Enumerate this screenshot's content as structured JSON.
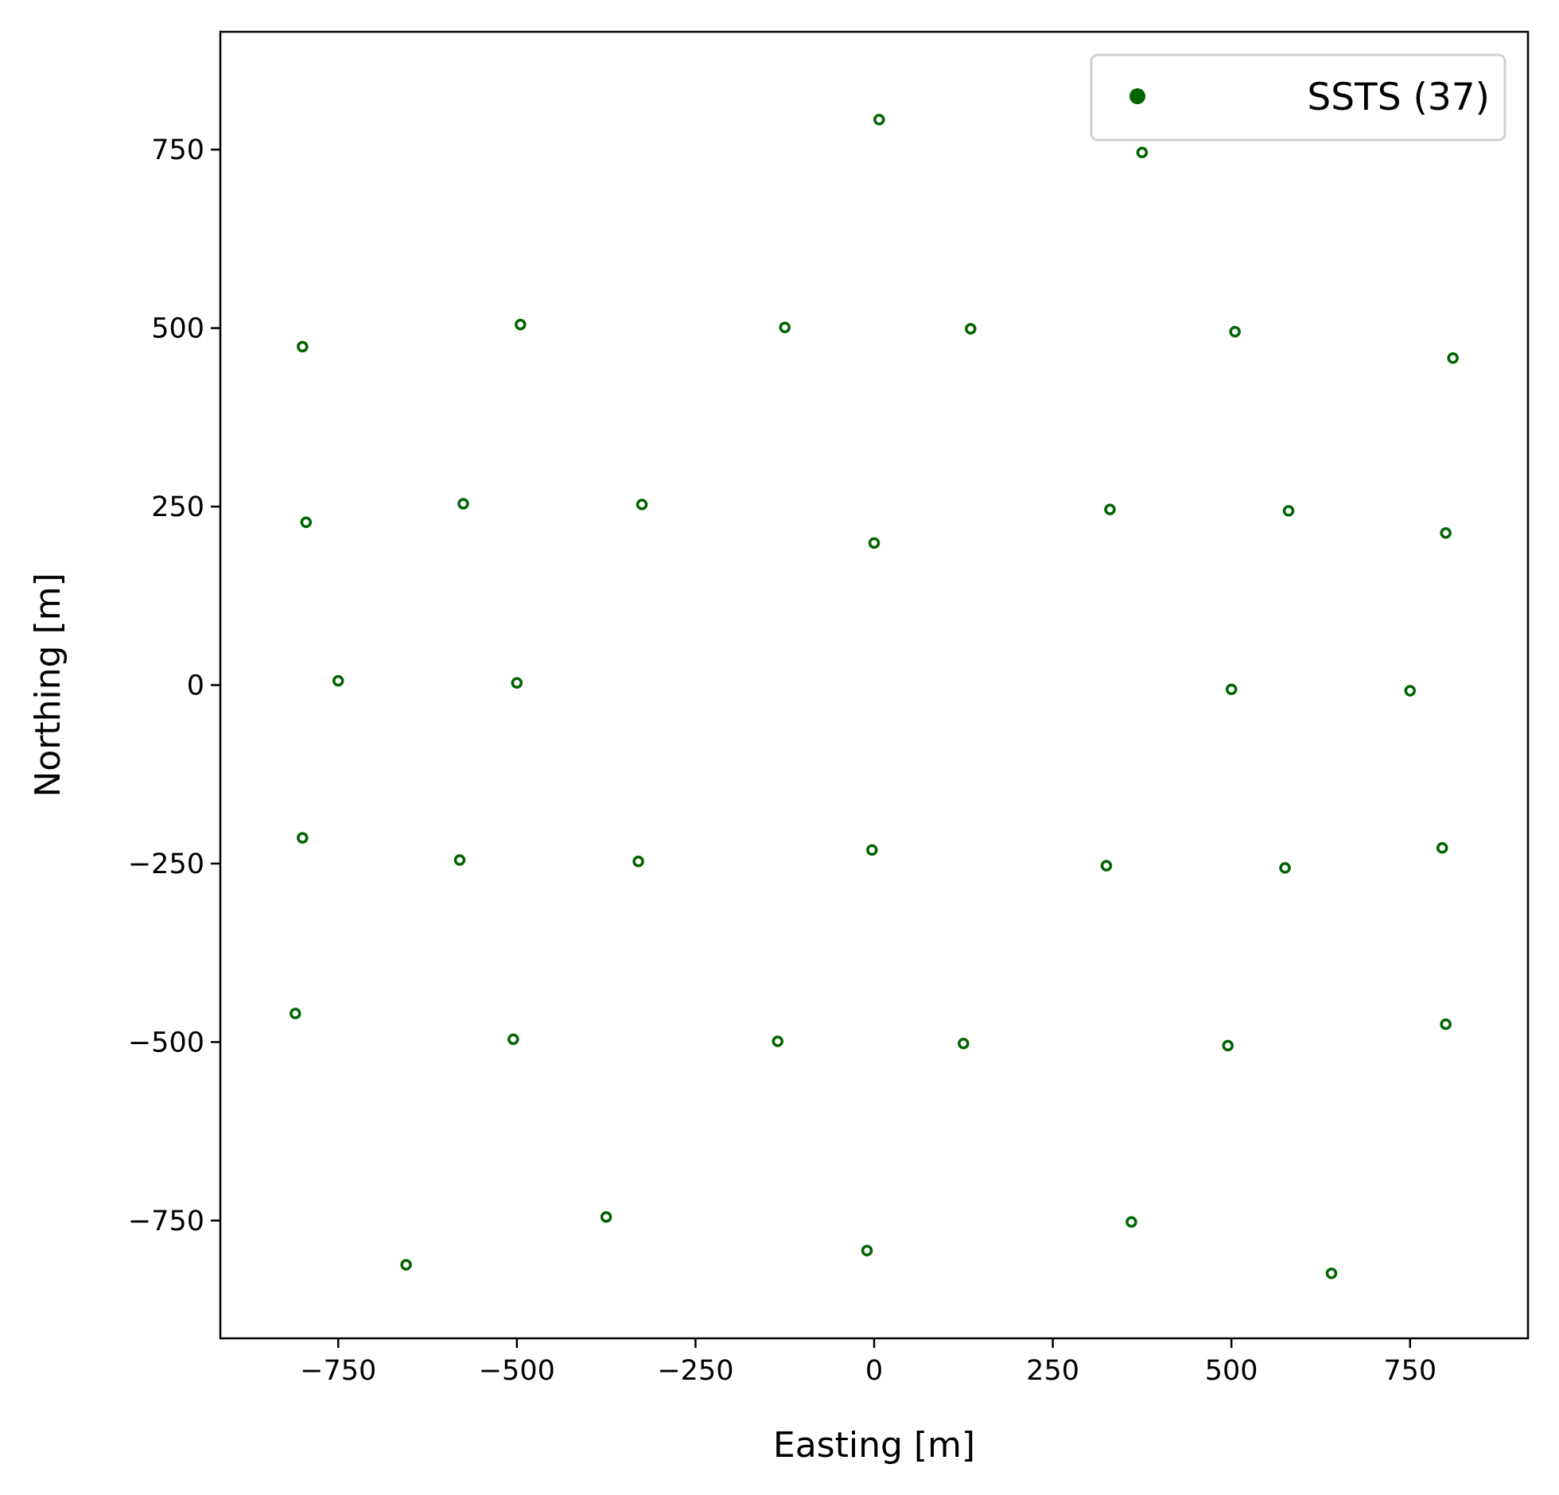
{
  "chart_data": {
    "type": "scatter",
    "xlabel": "Easting [m]",
    "ylabel": "Northing [m]",
    "xlim": [
      -915,
      915
    ],
    "ylim": [
      -915,
      915
    ],
    "xticks": [
      -750,
      -500,
      -250,
      0,
      250,
      500,
      750
    ],
    "yticks": [
      -750,
      -500,
      -250,
      0,
      250,
      500,
      750
    ],
    "xtick_labels": [
      "−750",
      "−500",
      "−250",
      "0",
      "250",
      "500",
      "750"
    ],
    "ytick_labels": [
      "−750",
      "−500",
      "−250",
      "0",
      "250",
      "500",
      "750"
    ],
    "grid": false,
    "legend_position": "top-right",
    "series": [
      {
        "name": "SSTS (37)",
        "color": "#006400",
        "marker": "hollow-circle",
        "points": [
          [
            7,
            792
          ],
          [
            375,
            746
          ],
          [
            -800,
            474
          ],
          [
            -495,
            505
          ],
          [
            -125,
            501
          ],
          [
            135,
            499
          ],
          [
            505,
            495
          ],
          [
            810,
            458
          ],
          [
            -795,
            228
          ],
          [
            -575,
            254
          ],
          [
            -325,
            253
          ],
          [
            0,
            199
          ],
          [
            330,
            246
          ],
          [
            580,
            244
          ],
          [
            800,
            213
          ],
          [
            -750,
            6
          ],
          [
            -500,
            3
          ],
          [
            500,
            -6
          ],
          [
            750,
            -8
          ],
          [
            -800,
            -214
          ],
          [
            -580,
            -245
          ],
          [
            -330,
            -247
          ],
          [
            -3,
            -231
          ],
          [
            325,
            -253
          ],
          [
            575,
            -256
          ],
          [
            795,
            -228
          ],
          [
            -810,
            -460
          ],
          [
            -505,
            -496
          ],
          [
            -135,
            -499
          ],
          [
            125,
            -502
          ],
          [
            495,
            -505
          ],
          [
            800,
            -475
          ],
          [
            -655,
            -812
          ],
          [
            -375,
            -745
          ],
          [
            -10,
            -792
          ],
          [
            360,
            -752
          ],
          [
            640,
            -824
          ]
        ]
      }
    ]
  }
}
